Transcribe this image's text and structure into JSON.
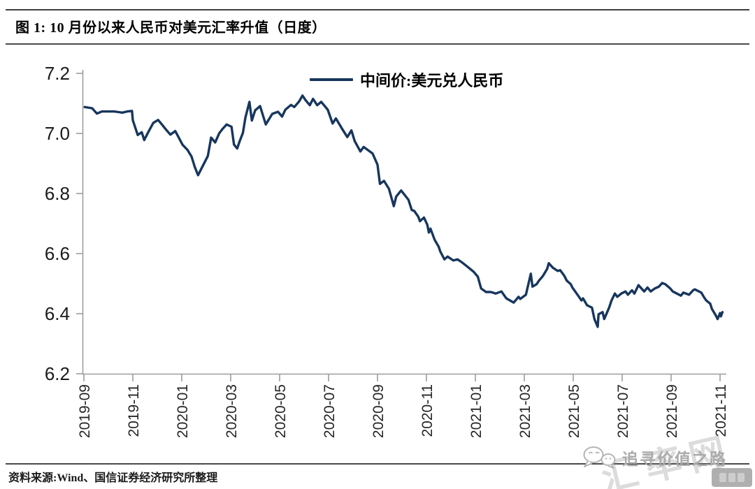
{
  "header": {
    "title": "图 1:  10 月份以来人民币对美元汇率升值（日度）"
  },
  "legend": {
    "label": "中间价:美元兑人民币"
  },
  "footer": {
    "source": "资料来源:Wind、国信证券经济研究所整理"
  },
  "watermarks": {
    "wechat": "追寻价值之路",
    "site": "汇率网"
  },
  "colors": {
    "line": "#17365d",
    "axis": "#9d9d9d",
    "tick_label": "#1a1a1a"
  },
  "chart_data": {
    "type": "line",
    "title": "中间价:美元兑人民币",
    "xlabel": "",
    "ylabel": "",
    "ylim": [
      6.2,
      7.2
    ],
    "y_ticks": [
      7.2,
      7.0,
      6.8,
      6.6,
      6.4,
      6.2
    ],
    "x_ticks": [
      "2019-09",
      "2019-11",
      "2020-01",
      "2020-03",
      "2020-05",
      "2020-07",
      "2020-09",
      "2020-11",
      "2021-01",
      "2021-03",
      "2021-05",
      "2021-07",
      "2021-09",
      "2021-11"
    ],
    "x_range": [
      "2019-09-02",
      "2021-11-04"
    ],
    "grid": false,
    "legend_position": "top-center",
    "series": [
      {
        "name": "中间价:美元兑人民币",
        "color": "#17365d",
        "points": [
          [
            "2019-09-02",
            7.088
          ],
          [
            "2019-09-06",
            7.086
          ],
          [
            "2019-09-11",
            7.084
          ],
          [
            "2019-09-17",
            7.066
          ],
          [
            "2019-09-23",
            7.073
          ],
          [
            "2019-09-27",
            7.073
          ],
          [
            "2019-10-08",
            7.073
          ],
          [
            "2019-10-14",
            7.071
          ],
          [
            "2019-10-18",
            7.069
          ],
          [
            "2019-10-24",
            7.073
          ],
          [
            "2019-10-30",
            7.075
          ],
          [
            "2019-11-01",
            7.044
          ],
          [
            "2019-11-07",
            6.995
          ],
          [
            "2019-11-12",
            7.004
          ],
          [
            "2019-11-15",
            6.978
          ],
          [
            "2019-11-20",
            7.005
          ],
          [
            "2019-11-26",
            7.035
          ],
          [
            "2019-12-02",
            7.045
          ],
          [
            "2019-12-06",
            7.032
          ],
          [
            "2019-12-11",
            7.015
          ],
          [
            "2019-12-17",
            6.996
          ],
          [
            "2019-12-23",
            7.008
          ],
          [
            "2019-12-27",
            6.988
          ],
          [
            "2020-01-02",
            6.962
          ],
          [
            "2020-01-08",
            6.945
          ],
          [
            "2020-01-13",
            6.923
          ],
          [
            "2020-01-17",
            6.888
          ],
          [
            "2020-01-21",
            6.861
          ],
          [
            "2020-02-03",
            6.925
          ],
          [
            "2020-02-07",
            6.986
          ],
          [
            "2020-02-12",
            6.97
          ],
          [
            "2020-02-17",
            7.001
          ],
          [
            "2020-02-21",
            7.015
          ],
          [
            "2020-02-26",
            7.03
          ],
          [
            "2020-03-02",
            7.022
          ],
          [
            "2020-03-05",
            6.963
          ],
          [
            "2020-03-09",
            6.95
          ],
          [
            "2020-03-12",
            6.974
          ],
          [
            "2020-03-16",
            7.002
          ],
          [
            "2020-03-19",
            7.052
          ],
          [
            "2020-03-24",
            7.105
          ],
          [
            "2020-03-27",
            7.043
          ],
          [
            "2020-04-01",
            7.077
          ],
          [
            "2020-04-07",
            7.091
          ],
          [
            "2020-04-14",
            7.03
          ],
          [
            "2020-04-22",
            7.065
          ],
          [
            "2020-04-29",
            7.072
          ],
          [
            "2020-05-04",
            7.056
          ],
          [
            "2020-05-08",
            7.079
          ],
          [
            "2020-05-15",
            7.095
          ],
          [
            "2020-05-19",
            7.088
          ],
          [
            "2020-05-25",
            7.107
          ],
          [
            "2020-05-29",
            7.126
          ],
          [
            "2020-06-03",
            7.11
          ],
          [
            "2020-06-08",
            7.094
          ],
          [
            "2020-06-12",
            7.115
          ],
          [
            "2020-06-17",
            7.094
          ],
          [
            "2020-06-22",
            7.105
          ],
          [
            "2020-06-30",
            7.079
          ],
          [
            "2020-07-06",
            7.033
          ],
          [
            "2020-07-10",
            7.05
          ],
          [
            "2020-07-17",
            7.018
          ],
          [
            "2020-07-24",
            6.988
          ],
          [
            "2020-07-29",
            7.01
          ],
          [
            "2020-08-03",
            6.975
          ],
          [
            "2020-08-10",
            6.94
          ],
          [
            "2020-08-14",
            6.955
          ],
          [
            "2020-08-25",
            6.933
          ],
          [
            "2020-09-01",
            6.896
          ],
          [
            "2020-09-04",
            6.832
          ],
          [
            "2020-09-09",
            6.842
          ],
          [
            "2020-09-15",
            6.816
          ],
          [
            "2020-09-21",
            6.758
          ],
          [
            "2020-09-24",
            6.79
          ],
          [
            "2020-09-30",
            6.81
          ],
          [
            "2020-10-09",
            6.779
          ],
          [
            "2020-10-13",
            6.745
          ],
          [
            "2020-10-16",
            6.742
          ],
          [
            "2020-10-21",
            6.723
          ],
          [
            "2020-10-23",
            6.708
          ],
          [
            "2020-10-28",
            6.72
          ],
          [
            "2020-11-02",
            6.696
          ],
          [
            "2020-11-04",
            6.67
          ],
          [
            "2020-11-06",
            6.683
          ],
          [
            "2020-11-11",
            6.646
          ],
          [
            "2020-11-16",
            6.623
          ],
          [
            "2020-11-18",
            6.607
          ],
          [
            "2020-11-23",
            6.581
          ],
          [
            "2020-11-27",
            6.59
          ],
          [
            "2020-12-04",
            6.577
          ],
          [
            "2020-12-09",
            6.581
          ],
          [
            "2020-12-15",
            6.57
          ],
          [
            "2020-12-22",
            6.555
          ],
          [
            "2020-12-29",
            6.539
          ],
          [
            "2021-01-04",
            6.523
          ],
          [
            "2021-01-08",
            6.484
          ],
          [
            "2021-01-14",
            6.472
          ],
          [
            "2021-01-20",
            6.472
          ],
          [
            "2021-01-26",
            6.467
          ],
          [
            "2021-02-03",
            6.474
          ],
          [
            "2021-02-09",
            6.451
          ],
          [
            "2021-02-18",
            6.437
          ],
          [
            "2021-02-24",
            6.456
          ],
          [
            "2021-02-26",
            6.449
          ],
          [
            "2021-03-03",
            6.463
          ],
          [
            "2021-03-09",
            6.533
          ],
          [
            "2021-03-11",
            6.49
          ],
          [
            "2021-03-16",
            6.498
          ],
          [
            "2021-03-19",
            6.51
          ],
          [
            "2021-03-24",
            6.526
          ],
          [
            "2021-03-29",
            6.549
          ],
          [
            "2021-03-31",
            6.568
          ],
          [
            "2021-04-06",
            6.553
          ],
          [
            "2021-04-12",
            6.542
          ],
          [
            "2021-04-15",
            6.545
          ],
          [
            "2021-04-20",
            6.526
          ],
          [
            "2021-04-23",
            6.51
          ],
          [
            "2021-04-28",
            6.498
          ],
          [
            "2021-04-30",
            6.487
          ],
          [
            "2021-05-07",
            6.46
          ],
          [
            "2021-05-11",
            6.444
          ],
          [
            "2021-05-13",
            6.451
          ],
          [
            "2021-05-18",
            6.428
          ],
          [
            "2021-05-24",
            6.42
          ],
          [
            "2021-05-27",
            6.382
          ],
          [
            "2021-05-31",
            6.356
          ],
          [
            "2021-06-02",
            6.398
          ],
          [
            "2021-06-07",
            6.405
          ],
          [
            "2021-06-09",
            6.382
          ],
          [
            "2021-06-15",
            6.42
          ],
          [
            "2021-06-18",
            6.444
          ],
          [
            "2021-06-22",
            6.467
          ],
          [
            "2021-06-25",
            6.456
          ],
          [
            "2021-06-30",
            6.467
          ],
          [
            "2021-07-05",
            6.474
          ],
          [
            "2021-07-08",
            6.463
          ],
          [
            "2021-07-13",
            6.478
          ],
          [
            "2021-07-16",
            6.467
          ],
          [
            "2021-07-21",
            6.495
          ],
          [
            "2021-07-28",
            6.474
          ],
          [
            "2021-08-02",
            6.487
          ],
          [
            "2021-08-06",
            6.474
          ],
          [
            "2021-08-11",
            6.484
          ],
          [
            "2021-08-16",
            6.49
          ],
          [
            "2021-08-20",
            6.502
          ],
          [
            "2021-08-24",
            6.498
          ],
          [
            "2021-08-30",
            6.484
          ],
          [
            "2021-09-03",
            6.474
          ],
          [
            "2021-09-08",
            6.467
          ],
          [
            "2021-09-13",
            6.46
          ],
          [
            "2021-09-16",
            6.47
          ],
          [
            "2021-09-23",
            6.463
          ],
          [
            "2021-09-28",
            6.478
          ],
          [
            "2021-09-30",
            6.481
          ],
          [
            "2021-10-08",
            6.47
          ],
          [
            "2021-10-11",
            6.456
          ],
          [
            "2021-10-14",
            6.444
          ],
          [
            "2021-10-19",
            6.433
          ],
          [
            "2021-10-21",
            6.416
          ],
          [
            "2021-10-26",
            6.393
          ],
          [
            "2021-10-28",
            6.382
          ],
          [
            "2021-11-01",
            6.402
          ],
          [
            "2021-11-02",
            6.391
          ],
          [
            "2021-11-03",
            6.398
          ],
          [
            "2021-11-04",
            6.405
          ]
        ]
      }
    ]
  }
}
